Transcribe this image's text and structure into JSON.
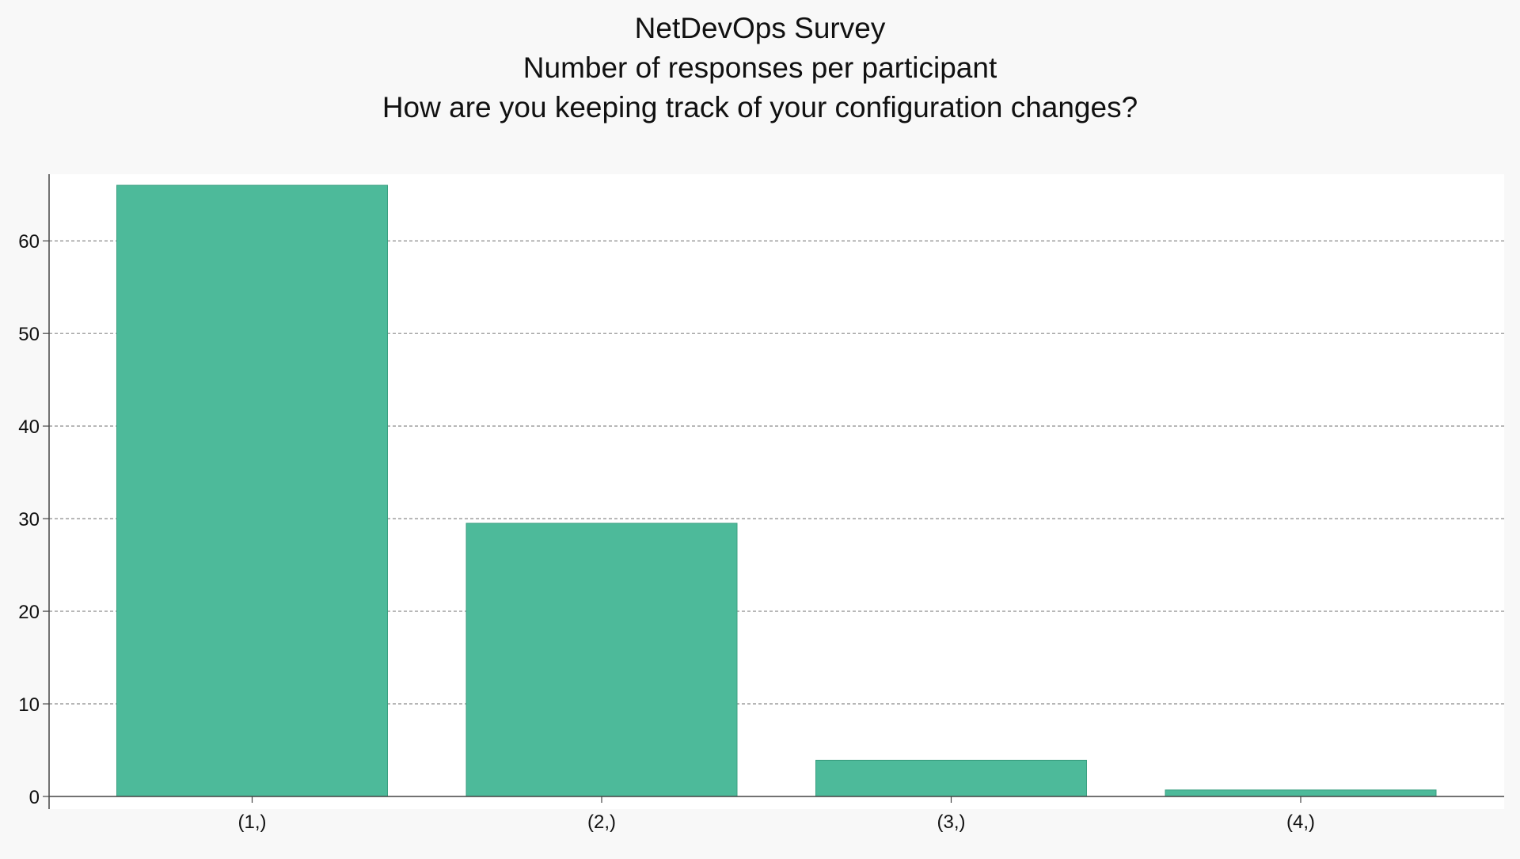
{
  "chart_data": {
    "type": "bar",
    "title_lines": [
      "NetDevOps Survey",
      "Number of responses per participant",
      "How are you keeping track of your configuration changes?"
    ],
    "categories": [
      "(1,)",
      "(2,)",
      "(3,)",
      "(4,)"
    ],
    "values": [
      66,
      29.5,
      3.9,
      0.7
    ],
    "ylim": [
      0,
      67.2
    ],
    "yticks": [
      0,
      10,
      20,
      30,
      40,
      50,
      60
    ],
    "ytick_labels": [
      "0",
      "10",
      "20",
      "30",
      "40",
      "50",
      "60"
    ],
    "xlabel": "",
    "ylabel": "",
    "grid": "horizontal dashed",
    "legend": "none",
    "bar_color": "#4dba9a",
    "bar_edge_color": "#3a9f80"
  },
  "colors": {
    "page_background": "#f8f8f8",
    "plot_background": "#ffffff",
    "grid": "#8a8a8a",
    "axis": "#444444",
    "text": "#111111"
  }
}
